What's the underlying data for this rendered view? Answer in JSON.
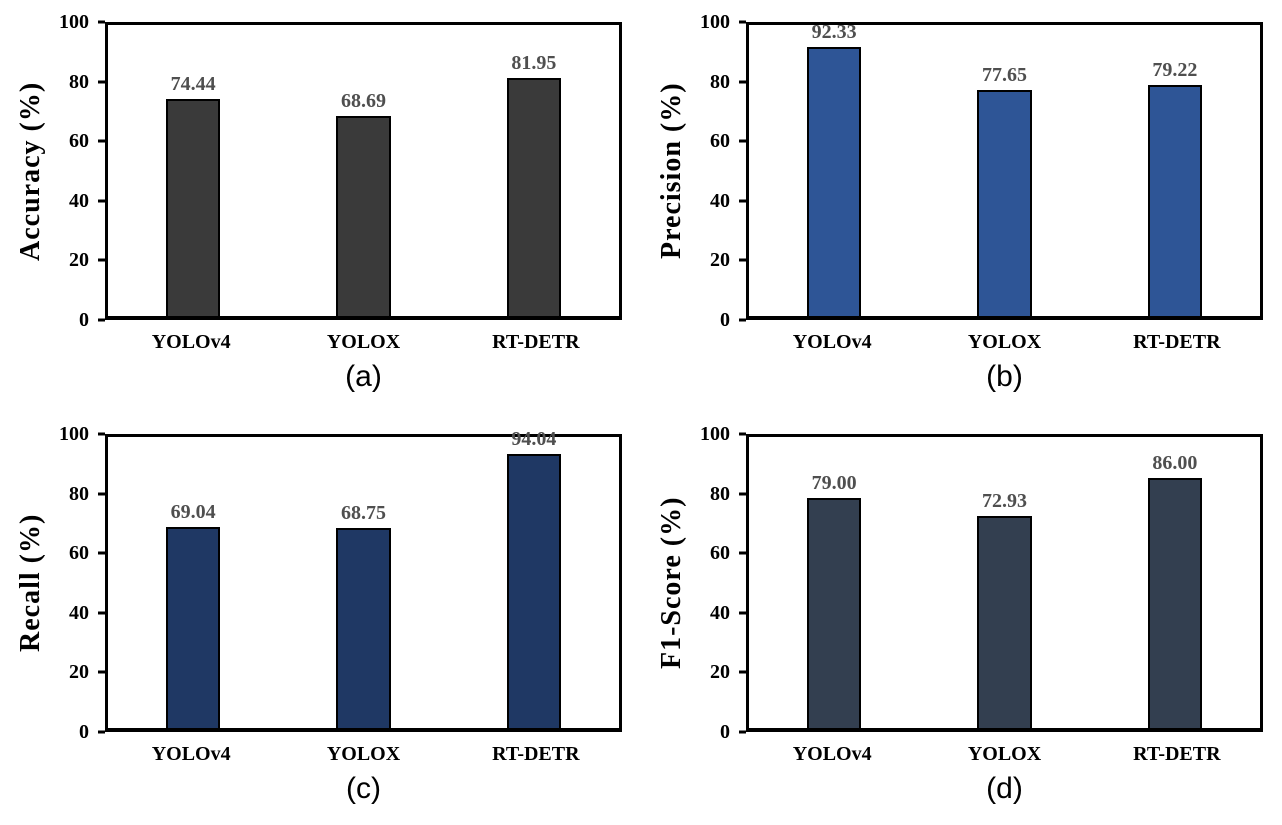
{
  "chart_data": [
    {
      "id": "accuracy",
      "type": "bar",
      "title": "",
      "ylabel": "Accuracy (%)",
      "xlabel": "",
      "categories": [
        "YOLOv4",
        "YOLOX",
        "RT-DETR"
      ],
      "values": [
        74.44,
        68.69,
        81.95
      ],
      "value_labels": [
        "74.44",
        "68.69",
        "81.95"
      ],
      "caption": "(a)",
      "ylim": [
        0,
        100
      ],
      "yticks": [
        0,
        20,
        40,
        60,
        80,
        100
      ],
      "grid": false,
      "legend": "none",
      "bar_color": "#3a3a3a",
      "bar_border_color": "#000000",
      "value_label_color": "#4f4f4f"
    },
    {
      "id": "precision",
      "type": "bar",
      "title": "",
      "ylabel": "Precision (%)",
      "xlabel": "",
      "categories": [
        "YOLOv4",
        "YOLOX",
        "RT-DETR"
      ],
      "values": [
        92.33,
        77.65,
        79.22
      ],
      "value_labels": [
        "92.33",
        "77.65",
        "79.22"
      ],
      "caption": "(b)",
      "ylim": [
        0,
        100
      ],
      "yticks": [
        0,
        20,
        40,
        60,
        80,
        100
      ],
      "grid": false,
      "legend": "none",
      "bar_color": "#2e5596",
      "bar_border_color": "#000000",
      "value_label_color": "#4f4f4f"
    },
    {
      "id": "recall",
      "type": "bar",
      "title": "",
      "ylabel": "Recall (%)",
      "xlabel": "",
      "categories": [
        "YOLOv4",
        "YOLOX",
        "RT-DETR"
      ],
      "values": [
        69.04,
        68.75,
        94.04
      ],
      "value_labels": [
        "69.04",
        "68.75",
        "94.04"
      ],
      "caption": "(c)",
      "ylim": [
        0,
        100
      ],
      "yticks": [
        0,
        20,
        40,
        60,
        80,
        100
      ],
      "grid": false,
      "legend": "none",
      "bar_color": "#1f3864",
      "bar_border_color": "#000000",
      "value_label_color": "#4f4f4f"
    },
    {
      "id": "f1_score",
      "type": "bar",
      "title": "",
      "ylabel": "F1-Score (%)",
      "xlabel": "",
      "categories": [
        "YOLOv4",
        "YOLOX",
        "RT-DETR"
      ],
      "values": [
        79.0,
        72.93,
        86.0
      ],
      "value_labels": [
        "79.00",
        "72.93",
        "86.00"
      ],
      "caption": "(d)",
      "ylim": [
        0,
        100
      ],
      "yticks": [
        0,
        20,
        40,
        60,
        80,
        100
      ],
      "grid": false,
      "legend": "none",
      "bar_color": "#333f50",
      "bar_border_color": "#000000",
      "value_label_color": "#4f4f4f"
    }
  ]
}
